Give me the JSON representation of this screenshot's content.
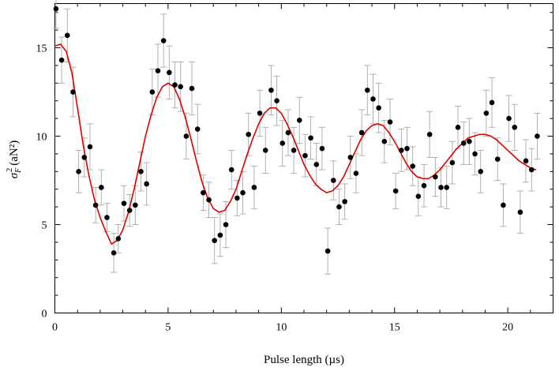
{
  "chart_data": {
    "type": "scatter",
    "xlabel": "Pulse length (µs)",
    "ylabel_parts": {
      "symbol": "σ",
      "subscript": "F",
      "superscript": "2",
      "unit": "(aN²)"
    },
    "xlim": [
      0,
      22
    ],
    "ylim": [
      0,
      17.5
    ],
    "xticks": [
      0,
      5,
      10,
      15,
      20
    ],
    "yticks": [
      0,
      5,
      10,
      15
    ],
    "xtick_labels": [
      "0",
      "5",
      "10",
      "15",
      "20"
    ],
    "ytick_labels": [
      "0",
      "5",
      "10",
      "15"
    ],
    "grid": false,
    "colors": {
      "points": "#000000",
      "fit": "#e00000",
      "errorbars": "#a8a8a8"
    },
    "series": [
      {
        "kind": "points_with_errorbars",
        "points": [
          [
            0.05,
            17.2,
            1.1
          ],
          [
            0.3,
            14.3,
            1.3
          ],
          [
            0.55,
            15.7,
            1.5
          ],
          [
            0.8,
            12.5,
            1.4
          ],
          [
            1.05,
            8.0,
            1.2
          ],
          [
            1.3,
            8.8,
            1.1
          ],
          [
            1.55,
            9.4,
            1.3
          ],
          [
            1.8,
            6.1,
            1.0
          ],
          [
            2.05,
            7.1,
            1.0
          ],
          [
            2.3,
            5.4,
            0.8
          ],
          [
            2.6,
            3.4,
            1.1
          ],
          [
            2.8,
            4.2,
            0.8
          ],
          [
            3.05,
            6.2,
            1.0
          ],
          [
            3.3,
            5.8,
            0.9
          ],
          [
            3.55,
            6.1,
            1.1
          ],
          [
            3.8,
            8.0,
            1.1
          ],
          [
            4.05,
            7.3,
            1.2
          ],
          [
            4.3,
            12.5,
            1.3
          ],
          [
            4.55,
            13.7,
            1.5
          ],
          [
            4.8,
            15.4,
            1.5
          ],
          [
            5.05,
            13.6,
            1.5
          ],
          [
            5.3,
            12.9,
            1.3
          ],
          [
            5.55,
            12.8,
            1.4
          ],
          [
            5.8,
            10.0,
            1.3
          ],
          [
            6.05,
            12.7,
            1.5
          ],
          [
            6.3,
            10.4,
            1.4
          ],
          [
            6.55,
            6.8,
            1.0
          ],
          [
            6.8,
            6.4,
            1.0
          ],
          [
            7.05,
            4.1,
            1.3
          ],
          [
            7.3,
            4.4,
            1.2
          ],
          [
            7.55,
            5.0,
            1.3
          ],
          [
            7.8,
            8.1,
            1.1
          ],
          [
            8.05,
            6.5,
            1.0
          ],
          [
            8.3,
            6.8,
            1.2
          ],
          [
            8.55,
            10.1,
            1.2
          ],
          [
            8.8,
            7.1,
            1.2
          ],
          [
            9.05,
            11.3,
            1.3
          ],
          [
            9.3,
            9.2,
            1.3
          ],
          [
            9.55,
            12.6,
            1.4
          ],
          [
            9.8,
            12.0,
            1.4
          ],
          [
            10.05,
            9.6,
            1.3
          ],
          [
            10.3,
            10.2,
            1.3
          ],
          [
            10.55,
            9.2,
            1.3
          ],
          [
            10.8,
            10.9,
            1.3
          ],
          [
            11.05,
            8.9,
            1.2
          ],
          [
            11.3,
            9.9,
            1.2
          ],
          [
            11.55,
            8.4,
            1.2
          ],
          [
            11.8,
            9.3,
            1.2
          ],
          [
            12.05,
            3.5,
            1.3
          ],
          [
            12.3,
            7.5,
            1.1
          ],
          [
            12.55,
            6.0,
            1.0
          ],
          [
            12.8,
            6.3,
            1.0
          ],
          [
            13.05,
            8.8,
            1.2
          ],
          [
            13.3,
            7.9,
            1.1
          ],
          [
            13.55,
            10.2,
            1.3
          ],
          [
            13.8,
            12.6,
            1.4
          ],
          [
            14.05,
            12.1,
            1.4
          ],
          [
            14.3,
            11.6,
            1.4
          ],
          [
            14.55,
            9.7,
            1.2
          ],
          [
            14.8,
            10.8,
            1.3
          ],
          [
            15.05,
            6.9,
            1.0
          ],
          [
            15.3,
            9.2,
            1.2
          ],
          [
            15.55,
            9.3,
            1.2
          ],
          [
            15.8,
            8.3,
            1.1
          ],
          [
            16.05,
            6.6,
            1.1
          ],
          [
            16.3,
            7.2,
            1.2
          ],
          [
            16.55,
            10.1,
            1.3
          ],
          [
            16.8,
            7.7,
            1.1
          ],
          [
            17.05,
            7.1,
            1.1
          ],
          [
            17.3,
            7.1,
            1.2
          ],
          [
            17.55,
            8.5,
            1.2
          ],
          [
            17.8,
            10.5,
            1.2
          ],
          [
            18.05,
            9.6,
            1.2
          ],
          [
            18.3,
            9.7,
            1.3
          ],
          [
            18.55,
            9.0,
            1.2
          ],
          [
            18.8,
            8.0,
            1.2
          ],
          [
            19.05,
            11.3,
            1.3
          ],
          [
            19.3,
            11.9,
            1.4
          ],
          [
            19.55,
            8.7,
            1.2
          ],
          [
            19.8,
            6.1,
            1.2
          ],
          [
            20.05,
            11.0,
            1.3
          ],
          [
            20.3,
            10.5,
            1.3
          ],
          [
            20.55,
            5.7,
            1.2
          ],
          [
            20.8,
            8.6,
            1.2
          ],
          [
            21.05,
            8.1,
            1.2
          ],
          [
            21.3,
            10.0,
            1.3
          ]
        ]
      },
      {
        "kind": "fit_curve",
        "x": [
          0.0,
          0.25,
          0.5,
          0.75,
          1.0,
          1.25,
          1.5,
          1.75,
          2.0,
          2.25,
          2.5,
          2.75,
          3.0,
          3.25,
          3.5,
          3.75,
          4.0,
          4.25,
          4.5,
          4.75,
          5.0,
          5.25,
          5.5,
          5.75,
          6.0,
          6.25,
          6.5,
          6.75,
          7.0,
          7.25,
          7.5,
          7.75,
          8.0,
          8.25,
          8.5,
          8.75,
          9.0,
          9.25,
          9.5,
          9.75,
          10.0,
          10.25,
          10.5,
          10.75,
          11.0,
          11.25,
          11.5,
          11.75,
          12.0,
          12.25,
          12.5,
          12.75,
          13.0,
          13.25,
          13.5,
          13.75,
          14.0,
          14.25,
          14.5,
          14.75,
          15.0,
          15.25,
          15.5,
          15.75,
          16.0,
          16.25,
          16.5,
          16.75,
          17.0,
          17.25,
          17.5,
          17.75,
          18.0,
          18.25,
          18.5,
          18.75,
          19.0,
          19.25,
          19.5,
          19.75,
          20.0,
          20.25,
          20.5,
          20.75,
          21.0,
          21.25
        ],
        "y": [
          15.1,
          15.2,
          14.8,
          13.6,
          11.6,
          9.5,
          7.8,
          6.4,
          5.4,
          4.6,
          3.9,
          4.1,
          4.7,
          5.7,
          7.0,
          8.5,
          10.0,
          11.2,
          12.2,
          12.8,
          13.0,
          12.8,
          12.1,
          11.1,
          9.9,
          8.6,
          7.4,
          6.5,
          5.9,
          5.7,
          5.8,
          6.3,
          7.0,
          8.0,
          9.0,
          9.9,
          10.7,
          11.3,
          11.6,
          11.6,
          11.3,
          10.7,
          10.0,
          9.2,
          8.4,
          7.8,
          7.3,
          7.0,
          6.8,
          6.9,
          7.2,
          7.7,
          8.4,
          9.1,
          9.8,
          10.3,
          10.6,
          10.7,
          10.6,
          10.2,
          9.7,
          9.1,
          8.5,
          8.0,
          7.7,
          7.6,
          7.6,
          7.8,
          8.1,
          8.5,
          8.9,
          9.3,
          9.6,
          9.9,
          10.0,
          10.1,
          10.1,
          10.0,
          9.8,
          9.5,
          9.2,
          8.9,
          8.6,
          8.4,
          8.2,
          8.1
        ]
      }
    ]
  }
}
